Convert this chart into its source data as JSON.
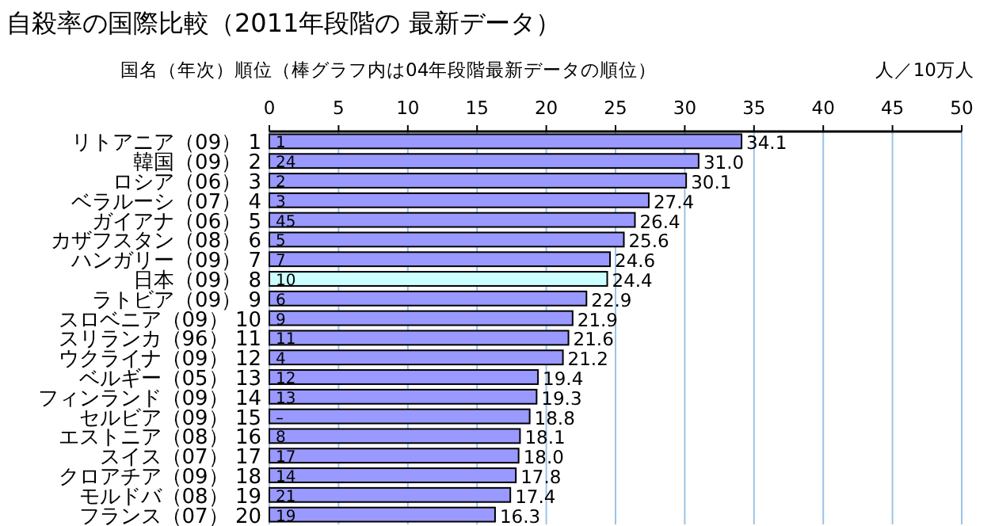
{
  "chart_data": {
    "type": "bar",
    "orientation": "horizontal",
    "title": "自殺率の国際比較（2011年段階の 最新データ）",
    "ylabel": "国名（年次）順位（棒グラフ内は04年段階最新データの順位）",
    "xlabel": "人／10万人",
    "categories": [
      "リトアニア（09） 1",
      "韓国（09） 2",
      "ロシア（06） 3",
      "ベラルーシ（07） 4",
      "ガイアナ（06） 5",
      "カザフスタン（08） 6",
      "ハンガリー（09） 7",
      "日本（09） 8",
      "ラトビア（09） 9",
      "スロベニア（09） 10",
      "スリランカ（96） 11",
      "ウクライナ（09） 12",
      "ベルギー（05） 13",
      "フィンランド（09） 14",
      "セルビア（09） 15",
      "エストニア（08） 16",
      "スイス（07） 17",
      "クロアチア（09） 18",
      "モルドバ（08） 19",
      "フランス（07） 20"
    ],
    "values": [
      34.1,
      31.0,
      30.1,
      27.4,
      26.4,
      25.6,
      24.6,
      24.4,
      22.9,
      21.9,
      21.6,
      21.2,
      19.4,
      19.3,
      18.8,
      18.1,
      18.0,
      17.8,
      17.4,
      16.3
    ],
    "colors": [
      "#9999ff",
      "#9999ff",
      "#9999ff",
      "#9999ff",
      "#9999ff",
      "#9999ff",
      "#9999ff",
      "#ccffff",
      "#9999ff",
      "#9999ff",
      "#9999ff",
      "#9999ff",
      "#9999ff",
      "#9999ff",
      "#9999ff",
      "#9999ff",
      "#9999ff",
      "#9999ff",
      "#9999ff",
      "#9999ff"
    ],
    "value_labels": [
      "34.1",
      "31.0",
      "30.1",
      "27.4",
      "26.4",
      "25.6",
      "24.6",
      "24.4",
      "22.9",
      "21.9",
      "21.6",
      "21.2",
      "19.4",
      "19.3",
      "18.8",
      "18.1",
      "18.0",
      "17.8",
      "17.4",
      "16.3"
    ],
    "xlim": [
      0,
      50
    ],
    "xticks": [
      0,
      5,
      10,
      15,
      20,
      25,
      30,
      35,
      40,
      45,
      50
    ],
    "grid": "x",
    "annotations": [
      {
        "text": "1",
        "y": "リトアニア（09） 1"
      },
      {
        "text": "24",
        "y": "韓国（09） 2"
      },
      {
        "text": "2",
        "y": "ロシア（06） 3"
      },
      {
        "text": "3",
        "y": "ベラルーシ（07） 4"
      },
      {
        "text": "45",
        "y": "ガイアナ（06） 5"
      },
      {
        "text": "5",
        "y": "カザフスタン（08） 6"
      },
      {
        "text": "7",
        "y": "ハンガリー（09） 7"
      },
      {
        "text": "10",
        "y": "日本（09） 8"
      },
      {
        "text": "6",
        "y": "ラトビア（09） 9"
      },
      {
        "text": "9",
        "y": "スロベニア（09） 10"
      },
      {
        "text": "11",
        "y": "スリランカ（96） 11"
      },
      {
        "text": "4",
        "y": "ウクライナ（09） 12"
      },
      {
        "text": "12",
        "y": "ベルギー（05） 13"
      },
      {
        "text": "13",
        "y": "フィンランド（09） 14"
      },
      {
        "text": "–",
        "y": "セルビア（09） 15"
      },
      {
        "text": "8",
        "y": "エストニア（08） 16"
      },
      {
        "text": "17",
        "y": "スイス（07） 17"
      },
      {
        "text": "14",
        "y": "クロアチア（09） 18"
      },
      {
        "text": "21",
        "y": "モルドバ（08） 19"
      },
      {
        "text": "19",
        "y": "フランス（07） 20"
      }
    ]
  }
}
